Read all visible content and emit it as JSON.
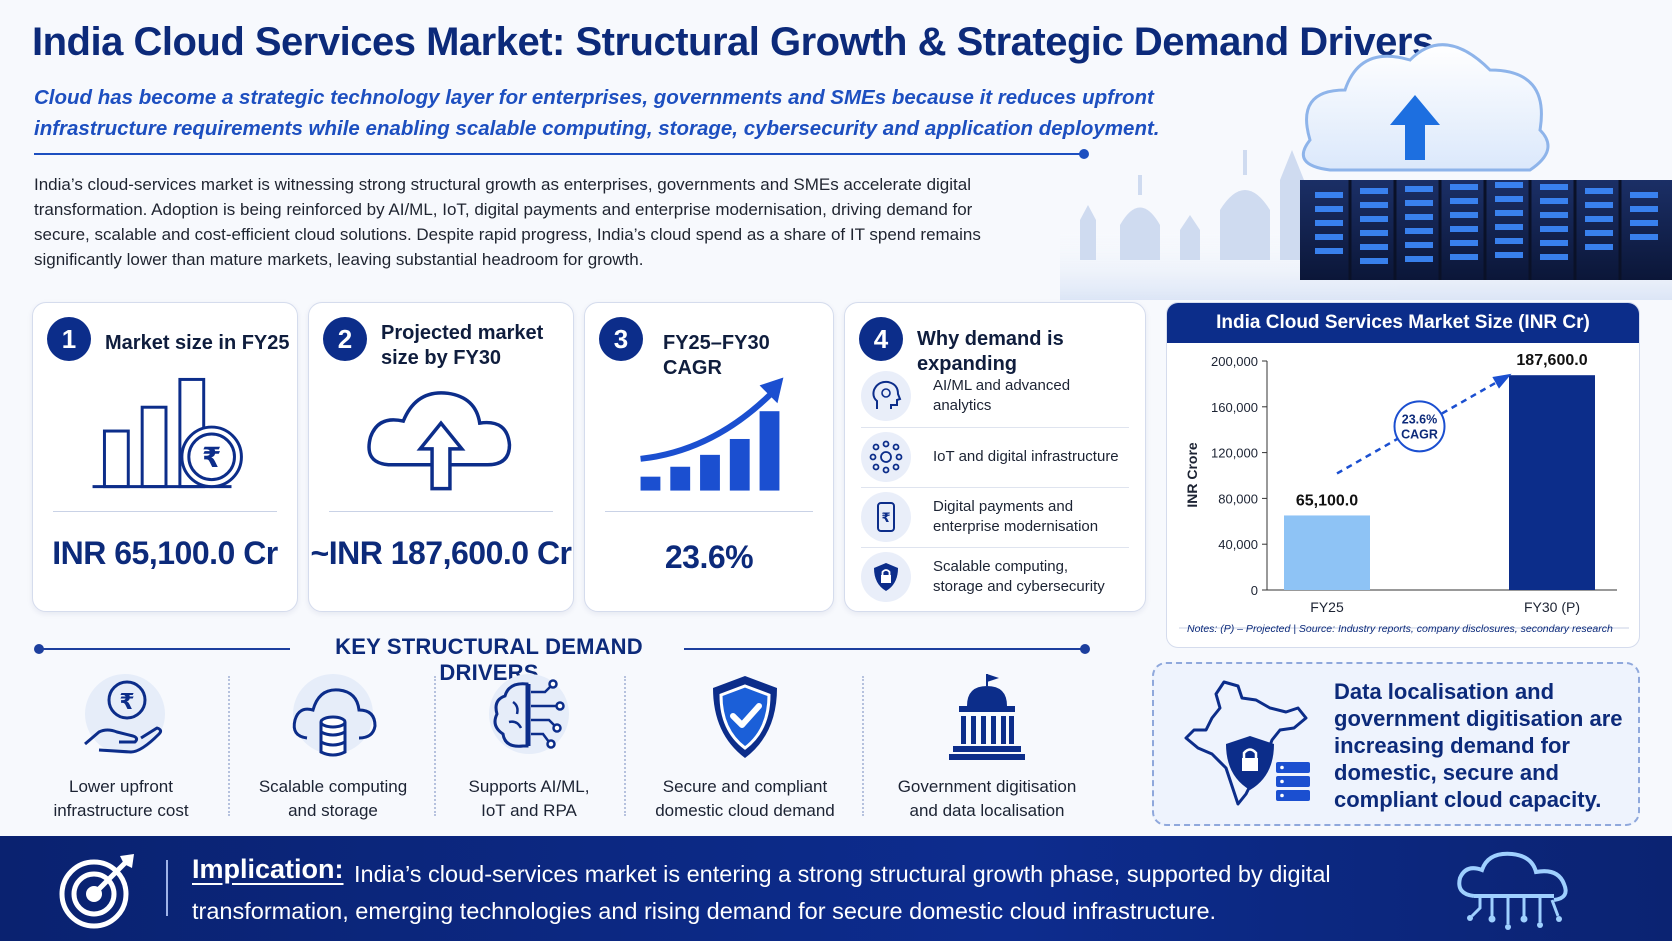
{
  "title": "India Cloud Services Market: Structural Growth & Strategic Demand Drivers",
  "subtitle": "Cloud has become a strategic technology layer for enterprises, governments and SMEs because it reduces upfront infrastructure requirements while enabling scalable computing, storage, cybersecurity and application deployment.",
  "intro": "India’s cloud-services market is witnessing strong structural growth as enterprises, governments and SMEs accelerate digital transformation. Adoption is being reinforced by AI/ML, IoT, digital payments and enterprise modernisation, driving demand for secure, scalable and cost-efficient cloud solutions. Despite rapid progress, India’s cloud spend as a share of IT spend remains significantly lower than mature markets, leaving substantial headroom for growth.",
  "cards": [
    {
      "number": "1",
      "title": "Market size in FY25",
      "value": "INR 65,100.0 Cr",
      "icon": "bar-chart-rupee-icon"
    },
    {
      "number": "2",
      "title": "Projected market size by FY30",
      "value": "~INR 187,600.0 Cr",
      "icon": "cloud-upload-icon"
    },
    {
      "number": "3",
      "title": "FY25–FY30 CAGR",
      "value": "23.6%",
      "icon": "growth-chart-icon"
    }
  ],
  "demand_card": {
    "number": "4",
    "title": "Why demand is expanding",
    "reasons": [
      {
        "label": "AI/ML and advanced analytics",
        "icon": "ai-head-icon"
      },
      {
        "label": "IoT and digital infrastructure",
        "icon": "iot-network-icon"
      },
      {
        "label": "Digital payments and enterprise modernisation",
        "icon": "mobile-payment-icon"
      },
      {
        "label": "Scalable computing, storage and cybersecurity",
        "icon": "shield-lock-icon"
      }
    ]
  },
  "chart_data": {
    "type": "bar",
    "title": "India Cloud Services Market Size (INR Cr)",
    "ylabel": "INR Crore",
    "categories": [
      "FY25",
      "FY30 (P)"
    ],
    "values": [
      65100.0,
      187600.0
    ],
    "value_labels": [
      "65,100.0",
      "187,600.0"
    ],
    "ylim": [
      0,
      200000
    ],
    "yticks": [
      0,
      40000,
      80000,
      120000,
      160000,
      200000
    ],
    "ytick_labels": [
      "0",
      "40,000",
      "80,000",
      "120,000",
      "160,000",
      "200,000"
    ],
    "colors": [
      "#8ec3f5",
      "#0c2d8a"
    ],
    "annotation": [
      "23.6%",
      "CAGR"
    ],
    "notes": "Notes: (P) – Projected   |   Source: Industry reports, company disclosures, secondary research"
  },
  "drivers": {
    "title": "KEY STRUCTURAL DEMAND DRIVERS",
    "items": [
      {
        "label_1": "Lower upfront",
        "label_2": "infrastructure cost",
        "icon": "hand-rupee-icon"
      },
      {
        "label_1": "Scalable computing",
        "label_2": "and storage",
        "icon": "cloud-database-icon"
      },
      {
        "label_1": "Supports AI/ML,",
        "label_2": "IoT and RPA",
        "icon": "brain-circuit-icon"
      },
      {
        "label_1": "Secure and compliant",
        "label_2": "domestic cloud demand",
        "icon": "shield-check-icon"
      },
      {
        "label_1": "Government digitisation",
        "label_2": "and data localisation",
        "icon": "government-building-icon"
      }
    ]
  },
  "callout": {
    "text": "Data localisation and government digitisation are increasing demand for domestic, secure and compliant cloud capacity.",
    "icon": "india-map-lock-icon"
  },
  "footer": {
    "label": "Implication:",
    "text": "India’s cloud-services market is entering a strong structural growth phase, supported by digital transformation, emerging technologies and rising demand for secure domestic cloud infrastructure.",
    "icon": "target-icon",
    "right_icon": "cloud-circuit-icon"
  },
  "colors": {
    "navy": "#0c2a7a",
    "accent_blue": "#1d4fc0",
    "light_bar": "#8ec3f5",
    "dark_bar": "#0c2d8a"
  }
}
